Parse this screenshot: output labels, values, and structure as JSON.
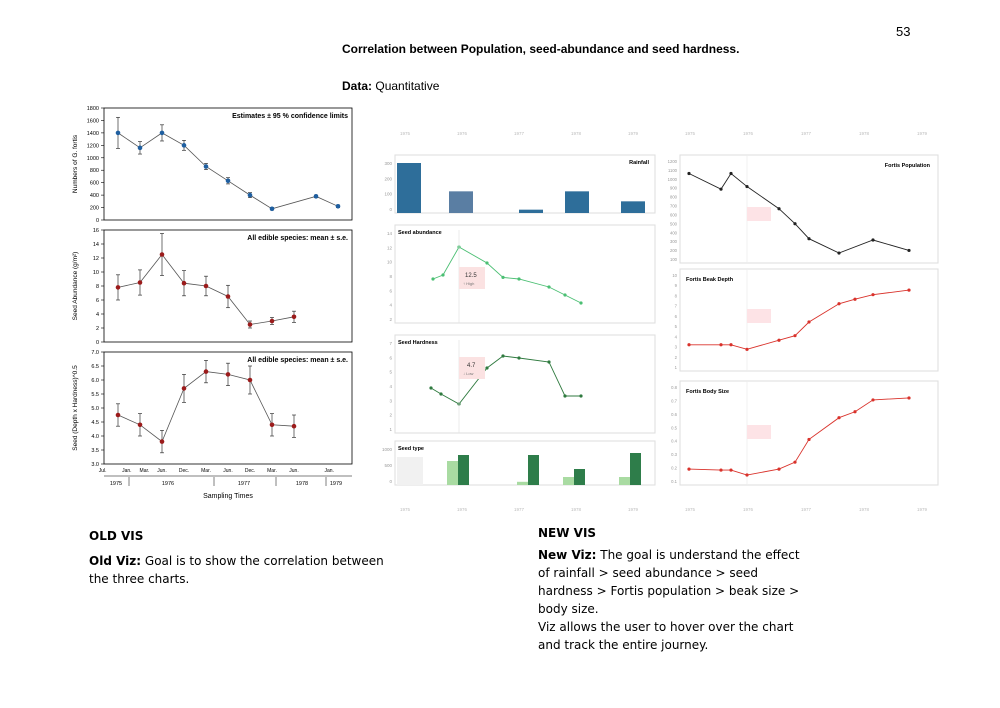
{
  "page_number": "53",
  "title": "Correlation between Population, seed-abundance and seed hardness.",
  "data_line": {
    "label": "Data:",
    "value": "Quantitative"
  },
  "old_vis": {
    "heading": "OLD VIS",
    "body_label": "Old Viz:",
    "body_text": "Goal is to show the correlation between the three charts."
  },
  "new_vis": {
    "heading": "NEW VIS",
    "body_label": "New Viz:",
    "body_text": "The goal is understand the effect of rainfall > seed abundance > seed hardness > Fortis population > beak size > body size.",
    "body_text2": "Viz allows the user to hover over the chart and track the entire journey."
  },
  "chart_data": [
    {
      "id": "old-population",
      "type": "scatter",
      "title": "Estimates ± 95 % confidence limits",
      "ylabel": "Numbers of G. fortis",
      "ylim": [
        0,
        1800
      ],
      "yticks": [
        0,
        200,
        400,
        600,
        800,
        1000,
        1200,
        1400,
        1600,
        1800
      ],
      "x": [
        1,
        2,
        3,
        4,
        5,
        6,
        7,
        8,
        10,
        11
      ],
      "values": [
        1400,
        1160,
        1400,
        1200,
        860,
        630,
        400,
        180,
        380,
        220
      ],
      "errors": [
        250,
        100,
        130,
        80,
        50,
        50,
        40,
        20,
        20,
        20
      ],
      "color": "#1f5fa0"
    },
    {
      "id": "old-abundance",
      "type": "line",
      "title": "All edible species: mean ± s.e.",
      "ylabel": "Seed Abundance (g/m²)",
      "ylim": [
        0,
        16
      ],
      "yticks": [
        0,
        2,
        4,
        6,
        8,
        10,
        12,
        14,
        16
      ],
      "x": [
        1,
        2,
        3,
        4,
        5,
        6,
        7,
        8,
        9,
        10
      ],
      "values": [
        7.8,
        8.5,
        12.5,
        8.4,
        8.0,
        6.5,
        2.5,
        3.0,
        3.6,
        null
      ],
      "errors": [
        1.8,
        1.8,
        3.0,
        1.8,
        1.4,
        1.6,
        0.5,
        0.5,
        0.8,
        null
      ],
      "color": "#9b1b1b"
    },
    {
      "id": "old-hardness",
      "type": "line",
      "title": "All edible species: mean ± s.e.",
      "ylabel": "Seed (Depth x Hardness)^0.5",
      "ylim": [
        3.0,
        7.0
      ],
      "yticks": [
        "3.0",
        "3.5",
        "4.0",
        "4.5",
        "5.0",
        "5.5",
        "6.0",
        "6.5",
        "7.0"
      ],
      "x": [
        1,
        2,
        3,
        4,
        5,
        6,
        7,
        8,
        9
      ],
      "values": [
        4.75,
        4.4,
        3.8,
        5.7,
        6.3,
        6.2,
        6.0,
        4.4,
        4.35
      ],
      "errors": [
        0.4,
        0.4,
        0.4,
        0.5,
        0.4,
        0.4,
        0.5,
        0.4,
        0.4
      ],
      "color": "#9b1b1b",
      "xlabel": "Sampling Times",
      "x_ticks": [
        "Jul.",
        "Jan.",
        "Mar.",
        "Jun.",
        "Dec.",
        "Mar.",
        "Jun.",
        "Dec.",
        "Mar.",
        "Jun.",
        "Jan."
      ],
      "years": [
        "1975",
        "1976",
        "1977",
        "1978",
        "1979"
      ]
    },
    {
      "id": "new-rainfall",
      "type": "bar",
      "title": "Rainfall",
      "yticks": [
        "300",
        "200",
        "100",
        "0"
      ],
      "values": [
        300,
        130,
        20,
        130,
        70
      ],
      "color": "#2e6e9a",
      "highlight_color": "#5a7ea3"
    },
    {
      "id": "new-abundance",
      "type": "line",
      "title": "Seed abundance",
      "yticks": [
        "14",
        "12",
        "10",
        "8",
        "6",
        "4",
        "2"
      ],
      "values": [
        8.5,
        9.0,
        12.5,
        10.5,
        8.7,
        8.5,
        7.5,
        6.5,
        5.5,
        6.0
      ],
      "color": "#4bbf73",
      "tooltip": {
        "value": "12.5",
        "note": "↑ High"
      }
    },
    {
      "id": "new-hardness",
      "type": "line",
      "title": "Seed Hardness",
      "yticks": [
        "7",
        "6",
        "5",
        "4",
        "3",
        "2",
        "1"
      ],
      "values": [
        4.6,
        4.3,
        3.8,
        5.6,
        6.2,
        6.1,
        5.9,
        4.2,
        4.2
      ],
      "color": "#2f7a3f",
      "tooltip": {
        "value": "4.7",
        "note": "↓ Low"
      }
    },
    {
      "id": "new-seedtype",
      "type": "bar",
      "title": "Seed type",
      "yticks": [
        "1000",
        "500",
        "0"
      ],
      "light_values": [
        400,
        600,
        80,
        200,
        200
      ],
      "dark_values": [
        700,
        750,
        750,
        400,
        800
      ],
      "light_color": "#a9dba2",
      "dark_color": "#2e7d4a"
    },
    {
      "id": "new-population",
      "type": "line",
      "title": "Fortis Population",
      "yticks": [
        "1200",
        "1100",
        "1000",
        "900",
        "800",
        "700",
        "600",
        "500",
        "400",
        "300",
        "200",
        "100"
      ],
      "values": [
        1400,
        1160,
        1400,
        1200,
        860,
        630,
        400,
        180,
        380,
        220
      ],
      "color": "#222222"
    },
    {
      "id": "new-beak",
      "type": "line",
      "title": "Fortis Beak Depth",
      "yticks": [
        "10",
        "9",
        "8",
        "7",
        "6",
        "5",
        "4",
        "3",
        "2",
        "1"
      ],
      "values": [
        8.9,
        8.9,
        8.9,
        8.8,
        9.0,
        9.1,
        9.4,
        9.8,
        9.9,
        10.0,
        10.1
      ],
      "color": "#d9322b"
    },
    {
      "id": "new-body",
      "type": "line",
      "title": "Fortis Body Size",
      "yticks": [
        "0.8",
        "0.7",
        "0.6",
        "0.5",
        "0.4",
        "0.3",
        "0.2",
        "0.1"
      ],
      "values": [
        0.08,
        0.07,
        0.07,
        0.02,
        0.08,
        0.15,
        0.38,
        0.6,
        0.66,
        0.78,
        0.8
      ],
      "color": "#d9322b"
    }
  ]
}
